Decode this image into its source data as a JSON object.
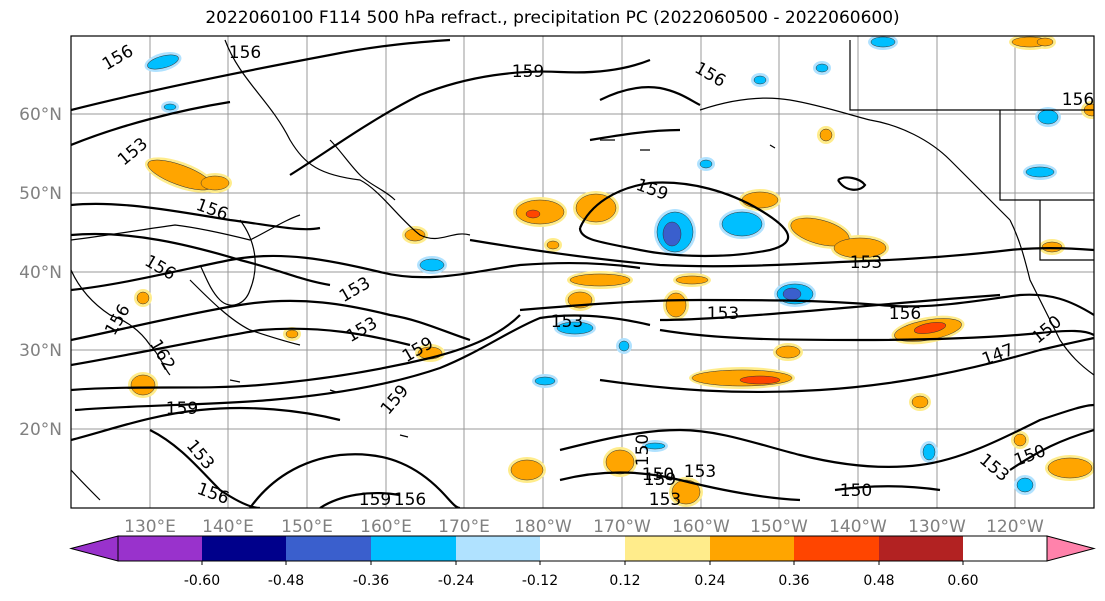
{
  "title": "2022060100 F114 500 hPa refract., precipitation PC (2022060500 - 2022060600)",
  "chart_data": {
    "type": "contour-map",
    "title": "2022060100 F114 500 hPa refract., precipitation PC (2022060500 - 2022060600)",
    "x_ticks": [
      "130°E",
      "140°E",
      "150°E",
      "160°E",
      "170°E",
      "180°W",
      "170°W",
      "160°W",
      "150°W",
      "140°W",
      "130°W",
      "120°W"
    ],
    "y_ticks": [
      "20°N",
      "30°N",
      "40°N",
      "50°N",
      "60°N"
    ],
    "grid": true,
    "contour_labels": [
      "156",
      "156",
      "159",
      "156",
      "156",
      "153",
      "156",
      "159",
      "156",
      "153",
      "153",
      "153",
      "159",
      "159",
      "153",
      "153",
      "156",
      "150",
      "147",
      "150",
      "159",
      "153",
      "150",
      "153",
      "156",
      "159",
      "156",
      "153",
      "150",
      "159",
      "150",
      "153",
      "162",
      "156"
    ],
    "colorbar": {
      "colors": [
        "#9932cc",
        "#00008b",
        "#3a5fcd",
        "#00bfff",
        "#b0e2ff",
        "#ffffff",
        "#ffec8b",
        "#ffa500",
        "#ff4500",
        "#b22222",
        "#ff82ab"
      ],
      "tick_labels": [
        "-0.60",
        "-0.48",
        "-0.36",
        "-0.24",
        "-0.12",
        "0.12",
        "0.24",
        "0.36",
        "0.48",
        "0.60"
      ],
      "extend": "both"
    }
  }
}
